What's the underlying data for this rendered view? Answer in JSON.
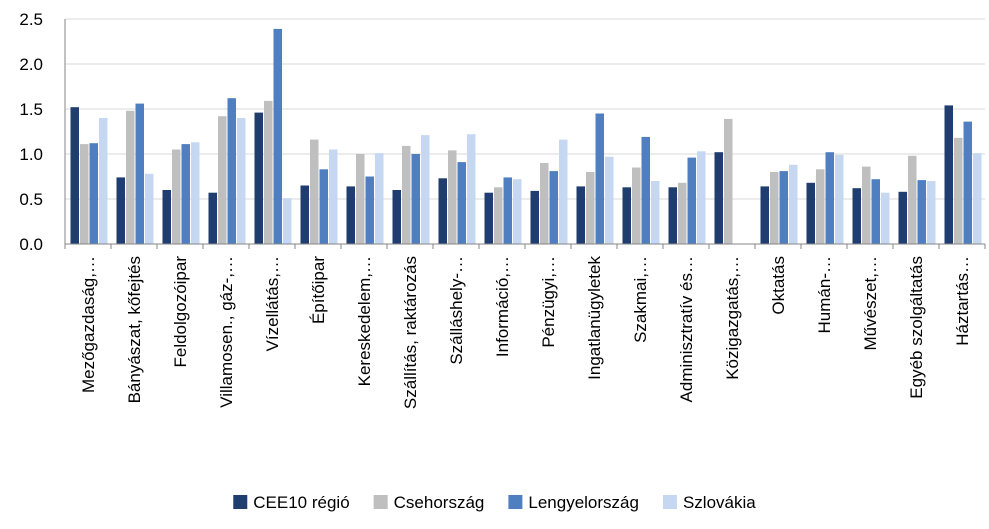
{
  "chart_data": {
    "type": "bar",
    "ylim": [
      0,
      2.5
    ],
    "yticks": [
      "0.0",
      "0.5",
      "1.0",
      "1.5",
      "2.0",
      "2.5"
    ],
    "grid": true,
    "legend_position": "bottom",
    "categories": [
      "Mezőgazdaság,…",
      "Bányászat, kőfejtés",
      "Feldolgozóipar",
      "Villamosen., gáz-,…",
      "Vízellátás,…",
      "Építőipar",
      "Kereskedelem,…",
      "Szállítás, raktározás",
      "Szálláshely-…",
      "Információ,…",
      "Pénzügyi,…",
      "Ingatlanügyletek",
      "Szakmai,…",
      "Adminisztratív és…",
      "Közigazgatás,…",
      "Oktatás",
      "Humán-…",
      "Művészet,…",
      "Egyéb szolgáltatás",
      "Háztartás…"
    ],
    "series": [
      {
        "name": "CEE10 régió",
        "color": "#1f3d6e",
        "values": [
          1.52,
          0.74,
          0.6,
          0.57,
          1.46,
          0.65,
          0.64,
          0.6,
          0.73,
          0.57,
          0.59,
          0.64,
          0.63,
          0.63,
          1.02,
          0.64,
          0.68,
          0.62,
          0.58,
          1.54
        ]
      },
      {
        "name": "Csehország",
        "color": "#bfbfbf",
        "values": [
          1.11,
          1.48,
          1.05,
          1.42,
          1.59,
          1.16,
          1.0,
          1.09,
          1.04,
          0.63,
          0.9,
          0.8,
          0.85,
          0.68,
          1.39,
          0.8,
          0.83,
          0.86,
          0.98,
          1.18
        ]
      },
      {
        "name": "Lengyelország",
        "color": "#4f7fc0",
        "values": [
          1.12,
          1.56,
          1.11,
          1.62,
          2.39,
          0.83,
          0.75,
          1.0,
          0.91,
          0.74,
          0.81,
          1.45,
          1.19,
          0.96,
          0.0,
          0.81,
          1.02,
          0.72,
          0.71,
          1.36
        ]
      },
      {
        "name": "Szlovákia",
        "color": "#c6d8f1",
        "values": [
          1.4,
          0.78,
          1.13,
          1.4,
          0.51,
          1.05,
          1.01,
          1.21,
          1.22,
          0.72,
          1.16,
          0.97,
          0.7,
          1.03,
          0.0,
          0.88,
          0.99,
          0.57,
          0.7,
          1.01
        ]
      }
    ]
  }
}
